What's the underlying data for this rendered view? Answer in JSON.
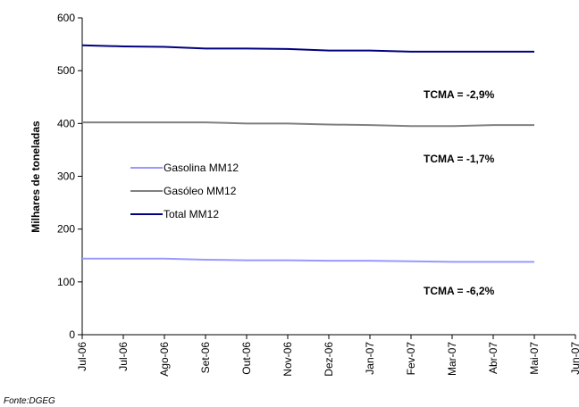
{
  "chart_data": {
    "type": "line",
    "ylabel": "Milhares de toneladas",
    "categories": [
      "Jul-06",
      "Jul-06",
      "Ago-06",
      "Set-06",
      "Out-06",
      "Nov-06",
      "Dez-06",
      "Jan-07",
      "Fev-07",
      "Mar-07",
      "Abr-07",
      "Mai-07",
      "Jun-07"
    ],
    "series": [
      {
        "name": "Gasolina MM12",
        "color": "#9999ff",
        "values": [
          144,
          144,
          144,
          142,
          141,
          141,
          140,
          140,
          139,
          138,
          138,
          138,
          null
        ]
      },
      {
        "name": "Gasóleo MM12",
        "color": "#808080",
        "values": [
          402,
          402,
          402,
          402,
          400,
          400,
          398,
          397,
          395,
          395,
          397,
          397,
          null
        ]
      },
      {
        "name": "Total MM12",
        "color": "#000080",
        "values": [
          548,
          546,
          545,
          542,
          542,
          541,
          538,
          538,
          536,
          536,
          536,
          536,
          null
        ]
      }
    ],
    "ylim": [
      0,
      600
    ],
    "yticks": [
      0,
      100,
      200,
      300,
      400,
      500,
      600
    ],
    "annotations": [
      "TCMA = -2,9%",
      "TCMA = -1,7%",
      "TCMA = -6,2%"
    ],
    "source": "Fonte:DGEG"
  }
}
